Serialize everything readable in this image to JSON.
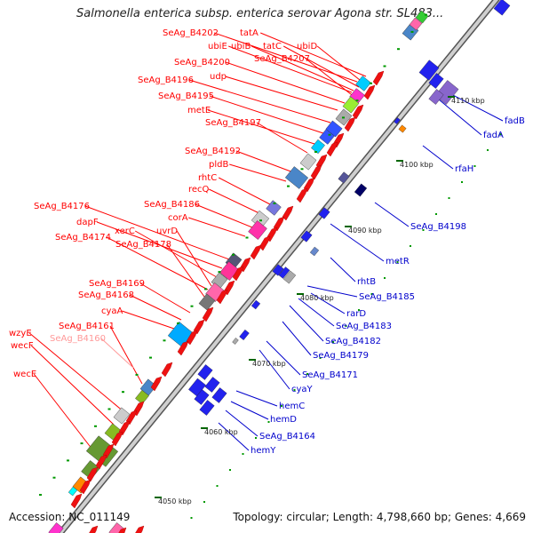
{
  "title": "Salmonella enterica subsp. enterica serovar Agona str. SL483...",
  "footer": {
    "accession": "Accession: NC_011149",
    "summary": "Topology: circular; Length: 4,798,660 bp; Genes: 4,669"
  },
  "colors": {
    "forward_label": "#ff0000",
    "reverse_label": "#0000cc",
    "faded_label": "#ff9999",
    "backbone": "#999999",
    "tick": "#009900"
  },
  "ticks": [
    "4050 kbp",
    "4060 kbp",
    "4070 kbp",
    "4080 kbp",
    "4090 kbp",
    "4100 kbp",
    "4110 kbp"
  ],
  "forward_labels": [
    "SeAg_B4202",
    "tatA",
    "ubiE",
    "ubiB",
    "tatC",
    "ubiD",
    "SeAg_B4200",
    "SeAg_B4207",
    "udp",
    "SeAg_B4196",
    "SeAg_B4195",
    "metE",
    "SeAg_B4197",
    "SeAg_B4192",
    "pldB",
    "rhtC",
    "recQ",
    "SeAg_B4186",
    "corA",
    "SeAg_B4176",
    "dapF",
    "xerC",
    "uvrD",
    "SeAg_B4174",
    "SeAg_B4178",
    "SeAg_B4169",
    "SeAg_B4168",
    "cyaA",
    "SeAg_B4161",
    "wzyE",
    "SeAg_B4160",
    "wecF",
    "wecE"
  ],
  "reverse_labels": [
    "fadB",
    "fadA",
    "rfaH",
    "SeAg_B4198",
    "metR",
    "rhtB",
    "SeAg_B4185",
    "rarD",
    "SeAg_B4183",
    "SeAg_B4182",
    "SeAg_B4179",
    "SeAg_B4171",
    "cyaY",
    "hemC",
    "hemD",
    "SeAg_B4164",
    "hemY"
  ]
}
